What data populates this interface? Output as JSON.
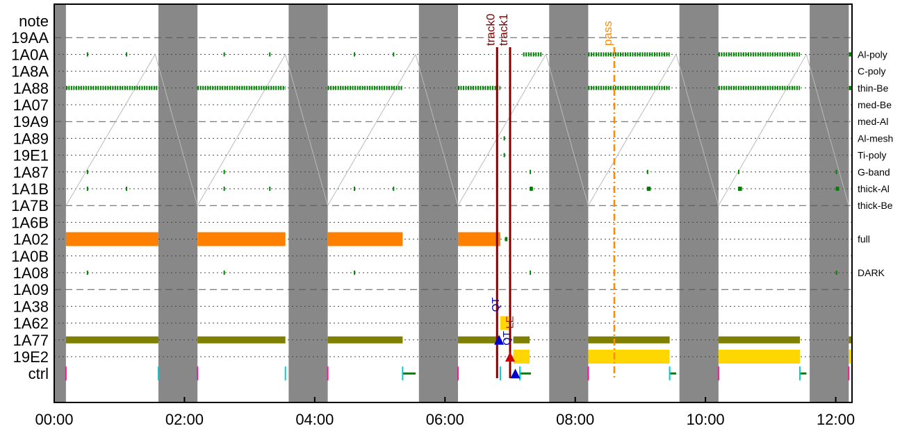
{
  "chart_data": {
    "type": "timeline",
    "x_axis": {
      "min_hours": 0.0,
      "max_hours": 12.25,
      "tick_labels": [
        "00:00",
        "02:00",
        "04:00",
        "06:00",
        "08:00",
        "10:00",
        "12:00"
      ],
      "tick_hours": [
        0,
        2,
        4,
        6,
        8,
        10,
        12
      ]
    },
    "y_rows": [
      "note",
      "19AA",
      "1A0A",
      "1A8A",
      "1A88",
      "1A07",
      "19A9",
      "1A89",
      "19E1",
      "1A87",
      "1A1B",
      "1A7B",
      "1A6B",
      "1A02",
      "1A0B",
      "1A08",
      "1A09",
      "1A38",
      "1A62",
      "1A77",
      "19E2",
      "ctrl"
    ],
    "dashed_rows": [
      "19AA",
      "19A9",
      "1A7B",
      "1A09"
    ],
    "right_labels": {
      "1A0A": "Al-poly",
      "1A8A": "C-poly",
      "1A88": "thin-Be",
      "1A07": "med-Be",
      "19A9": "med-Al",
      "1A89": "Al-mesh",
      "19E1": "Ti-poly",
      "1A87": "G-band",
      "1A1B": "thick-Al",
      "1A7B": "thick-Be",
      "1A02": "full",
      "1A08": "DARK"
    },
    "gray_bands": [
      [
        0.0,
        0.18
      ],
      [
        1.6,
        2.2
      ],
      [
        3.6,
        4.2
      ],
      [
        5.6,
        6.2
      ],
      [
        7.6,
        8.2
      ],
      [
        9.6,
        10.2
      ],
      [
        11.6,
        12.2
      ]
    ],
    "orange_bars": {
      "row": "1A02",
      "color": "#ff8000",
      "spans": [
        [
          0.18,
          1.6
        ],
        [
          2.2,
          3.55
        ],
        [
          4.2,
          5.35
        ],
        [
          6.2,
          6.85
        ]
      ]
    },
    "olive_bars": {
      "row": "1A77",
      "color": "#808000",
      "spans": [
        [
          0.18,
          1.6
        ],
        [
          2.2,
          3.55
        ],
        [
          4.2,
          5.35
        ],
        [
          6.2,
          6.85
        ],
        [
          7.05,
          7.3
        ],
        [
          8.2,
          9.45
        ],
        [
          10.2,
          11.45
        ],
        [
          12.2,
          12.25
        ]
      ]
    },
    "yellow_bars": [
      {
        "row": "19E2",
        "spans": [
          [
            7.05,
            7.3
          ],
          [
            8.2,
            9.45
          ],
          [
            10.2,
            11.45
          ],
          [
            12.2,
            12.25
          ]
        ]
      },
      {
        "row": "1A62",
        "spans": [
          [
            6.85,
            6.98
          ]
        ]
      }
    ],
    "green_segments": {
      "color": "#008000",
      "rows": {
        "1A0A": [
          [
            0.5,
            0.52
          ],
          [
            1.1,
            1.12
          ],
          [
            2.6,
            2.62
          ],
          [
            3.3,
            3.32
          ],
          [
            4.6,
            4.62
          ],
          [
            5.2,
            5.22
          ],
          [
            7.2,
            7.5
          ],
          [
            8.2,
            9.45
          ],
          [
            10.2,
            11.45
          ],
          [
            12.2,
            12.25
          ]
        ],
        "1A88": [
          [
            0.18,
            1.6
          ],
          [
            2.2,
            3.55
          ],
          [
            4.2,
            5.35
          ],
          [
            6.2,
            6.85
          ],
          [
            8.2,
            9.45
          ],
          [
            10.2,
            11.45
          ],
          [
            12.2,
            12.25
          ]
        ],
        "1A89": [
          [
            6.9,
            6.92
          ]
        ],
        "19E1": [
          [
            6.9,
            6.92
          ]
        ],
        "1A87": [
          [
            0.5,
            0.52
          ],
          [
            2.6,
            2.62
          ],
          [
            7.3,
            7.32
          ],
          [
            9.1,
            9.12
          ],
          [
            10.5,
            10.52
          ],
          [
            12.0,
            12.02
          ]
        ],
        "1A1B": [
          [
            0.5,
            0.52
          ],
          [
            1.1,
            1.12
          ],
          [
            2.6,
            2.62
          ],
          [
            3.3,
            3.32
          ],
          [
            4.6,
            4.62
          ],
          [
            5.2,
            5.22
          ],
          [
            7.3,
            7.35
          ],
          [
            9.1,
            9.16
          ],
          [
            10.5,
            10.56
          ],
          [
            12.0,
            12.05
          ]
        ],
        "1A02": [
          [
            6.92,
            6.96
          ]
        ],
        "1A08": [
          [
            0.5,
            0.52
          ],
          [
            2.6,
            2.62
          ],
          [
            4.6,
            4.62
          ],
          [
            7.3,
            7.32
          ],
          [
            12.0,
            12.02
          ]
        ]
      }
    },
    "vertical_markers": [
      {
        "label": "track0",
        "hours": 6.8,
        "color": "#800000",
        "style": "solid"
      },
      {
        "label": "track1",
        "hours": 7.0,
        "color": "#800000",
        "style": "solid"
      },
      {
        "label": "pass",
        "hours": 8.6,
        "color": "#ff8c00",
        "style": "dashdot"
      }
    ],
    "annotations": [
      {
        "text": "QT",
        "hours": 6.83,
        "row": "1A38",
        "color": "#0000cc"
      },
      {
        "text": "QT",
        "hours": 7.0,
        "row": "1A77",
        "color": "#0000cc"
      },
      {
        "text": "LE",
        "hours": 7.05,
        "row": "1A62",
        "color": "#cc0000"
      }
    ],
    "triangles": [
      {
        "hours": 6.83,
        "row": "1A77",
        "color": "#0000cc"
      },
      {
        "hours": 7.0,
        "row": "19E2",
        "color": "#cc0000"
      },
      {
        "hours": 7.08,
        "row": "ctrl",
        "color": "#0000cc"
      }
    ],
    "ctrl_ticks": [
      {
        "hours": 0.18,
        "color": "#ff1493"
      },
      {
        "hours": 1.6,
        "color": "#00ced1"
      },
      {
        "hours": 2.2,
        "color": "#ff1493"
      },
      {
        "hours": 3.55,
        "color": "#00ced1"
      },
      {
        "hours": 4.2,
        "color": "#ff1493"
      },
      {
        "hours": 5.35,
        "color": "#00ced1"
      },
      {
        "hours": 6.2,
        "color": "#ff1493"
      },
      {
        "hours": 6.85,
        "color": "#00ced1"
      },
      {
        "hours": 7.15,
        "color": "#00ced1"
      },
      {
        "hours": 8.2,
        "color": "#ff1493"
      },
      {
        "hours": 9.45,
        "color": "#00ced1"
      },
      {
        "hours": 10.2,
        "color": "#ff1493"
      },
      {
        "hours": 11.45,
        "color": "#00ced1"
      },
      {
        "hours": 12.2,
        "color": "#ff1493"
      }
    ],
    "ctrl_lines": [
      [
        5.35,
        5.55
      ],
      [
        7.15,
        7.32
      ],
      [
        9.45,
        9.55
      ],
      [
        11.45,
        11.55
      ]
    ]
  }
}
